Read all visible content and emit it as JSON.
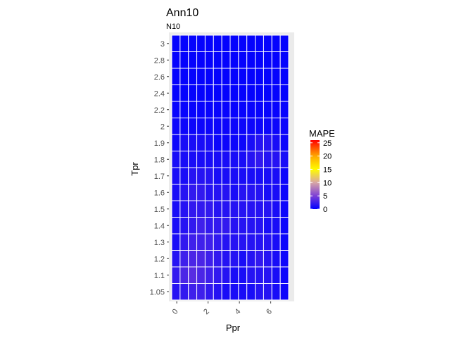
{
  "chart_data": {
    "type": "heatmap",
    "title": "Ann10",
    "subtitle": "N10",
    "xlabel": "Ppr",
    "ylabel": "Tpr",
    "x_ticks": [
      0,
      2,
      4,
      6
    ],
    "xlim": [
      -0.5,
      7.5
    ],
    "x_values": [
      0.5,
      1.0,
      1.5,
      2.0,
      2.5,
      3.0,
      3.5,
      4.0,
      4.5,
      5.0,
      5.5,
      6.0,
      6.5,
      7.0
    ],
    "y_categories": [
      "1.05",
      "1.1",
      "1.2",
      "1.3",
      "1.4",
      "1.5",
      "1.6",
      "1.7",
      "1.8",
      "1.9",
      "2",
      "2.2",
      "2.4",
      "2.6",
      "2.8",
      "3"
    ],
    "mape": [
      [
        1.5,
        2.0,
        2.5,
        2.5,
        2.0,
        1.5,
        1.0,
        1.0,
        1.0,
        1.0,
        1.5,
        1.5,
        1.0,
        0.5
      ],
      [
        2.0,
        3.0,
        3.5,
        3.0,
        2.5,
        2.0,
        1.5,
        1.0,
        1.0,
        1.5,
        1.5,
        1.5,
        1.0,
        0.5
      ],
      [
        1.5,
        2.5,
        3.0,
        3.0,
        2.5,
        2.0,
        1.5,
        1.5,
        1.0,
        1.5,
        2.0,
        1.5,
        1.0,
        0.5
      ],
      [
        1.0,
        2.0,
        2.5,
        2.5,
        2.5,
        2.0,
        1.5,
        1.5,
        1.5,
        1.5,
        1.5,
        1.5,
        1.0,
        0.5
      ],
      [
        1.0,
        1.5,
        2.0,
        2.5,
        2.0,
        2.0,
        2.0,
        1.5,
        1.5,
        1.5,
        1.5,
        1.0,
        1.0,
        0.5
      ],
      [
        1.0,
        1.5,
        2.0,
        2.0,
        2.0,
        1.5,
        1.5,
        1.5,
        1.5,
        1.5,
        1.5,
        1.5,
        1.0,
        0.5
      ],
      [
        1.0,
        1.5,
        2.0,
        2.0,
        1.5,
        1.5,
        1.5,
        1.0,
        1.5,
        1.5,
        1.5,
        1.0,
        1.0,
        0.5
      ],
      [
        1.0,
        1.0,
        1.5,
        1.5,
        1.5,
        1.0,
        1.0,
        1.0,
        1.0,
        1.0,
        1.0,
        1.0,
        1.0,
        0.5
      ],
      [
        1.0,
        1.0,
        1.0,
        1.0,
        1.0,
        1.0,
        1.0,
        1.0,
        1.0,
        1.5,
        2.0,
        1.5,
        1.5,
        1.0
      ],
      [
        0.5,
        1.0,
        1.0,
        1.0,
        1.0,
        0.5,
        0.5,
        0.5,
        0.5,
        1.0,
        1.5,
        1.5,
        1.0,
        0.5
      ],
      [
        0.5,
        0.5,
        0.5,
        0.5,
        0.5,
        0.5,
        0.5,
        0.5,
        0.5,
        0.5,
        0.5,
        0.5,
        0.5,
        0.5
      ],
      [
        0.3,
        0.3,
        0.3,
        0.3,
        0.3,
        0.3,
        0.3,
        0.3,
        0.3,
        0.3,
        0.3,
        0.3,
        0.3,
        0.3
      ],
      [
        0.2,
        0.2,
        0.2,
        0.2,
        0.2,
        0.2,
        0.2,
        0.2,
        0.2,
        0.2,
        0.2,
        0.2,
        0.2,
        0.2
      ],
      [
        0.2,
        0.2,
        0.2,
        0.2,
        0.2,
        0.2,
        0.2,
        0.2,
        0.2,
        0.2,
        0.2,
        0.2,
        0.2,
        0.2
      ],
      [
        0.2,
        0.2,
        0.2,
        0.2,
        0.2,
        0.2,
        0.2,
        0.2,
        0.2,
        0.2,
        0.2,
        0.2,
        0.2,
        0.2
      ],
      [
        0.2,
        0.2,
        0.2,
        0.2,
        0.2,
        0.2,
        0.2,
        0.2,
        0.2,
        0.2,
        0.2,
        0.2,
        0.2,
        0.2
      ]
    ],
    "legend": {
      "title": "MAPE",
      "ticks": [
        0,
        5,
        10,
        15,
        20,
        25
      ],
      "range": [
        0,
        26
      ],
      "placement": "right"
    },
    "color_scale": [
      "#0000ff",
      "#7d3fd6",
      "#d8a6a6",
      "#fffc00",
      "#ffa800",
      "#ff0000"
    ],
    "panel_background": "#ebebeb",
    "tile_border": "#ffffff",
    "grid": true
  }
}
